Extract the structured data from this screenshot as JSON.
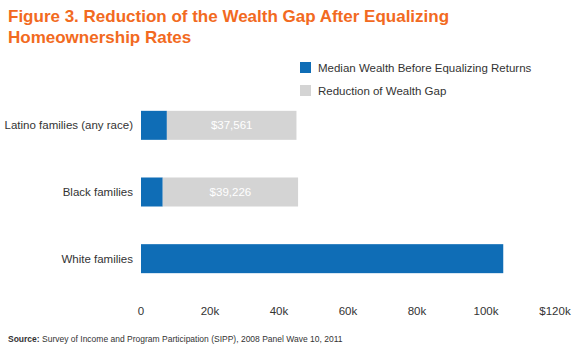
{
  "chart_data": {
    "type": "bar",
    "orientation": "horizontal",
    "stacked": true,
    "title": "Figure 3. Reduction of the Wealth Gap After Equalizing Homeownership Rates",
    "categories": [
      "Latino families (any race)",
      "Black families",
      "White families"
    ],
    "series": [
      {
        "name": "Median Wealth Before Equalizing Returns",
        "color": "#0f6db6",
        "values": [
          7500,
          6300,
          105000
        ]
      },
      {
        "name": "Reduction of Wealth Gap",
        "color": "#d4d4d4",
        "values": [
          37561,
          39226,
          null
        ],
        "value_labels": [
          "$37,561",
          "$39,226",
          null
        ]
      }
    ],
    "data_labels": true,
    "xlim": [
      0,
      120000
    ],
    "xticks": [
      0,
      {
        "value": 20000,
        "label": "20k"
      },
      {
        "value": 40000,
        "label": "40k"
      },
      {
        "value": 60000,
        "label": "60k"
      },
      {
        "value": 80000,
        "label": "80k"
      },
      {
        "value": 100000,
        "label": "100k"
      },
      {
        "value": 120000,
        "label": "$120k"
      }
    ],
    "grid": false,
    "legend": "top-right",
    "source": "Source: Survey of Income and Program Participation (SIPP), 2008 Panel Wave 10, 2011"
  }
}
